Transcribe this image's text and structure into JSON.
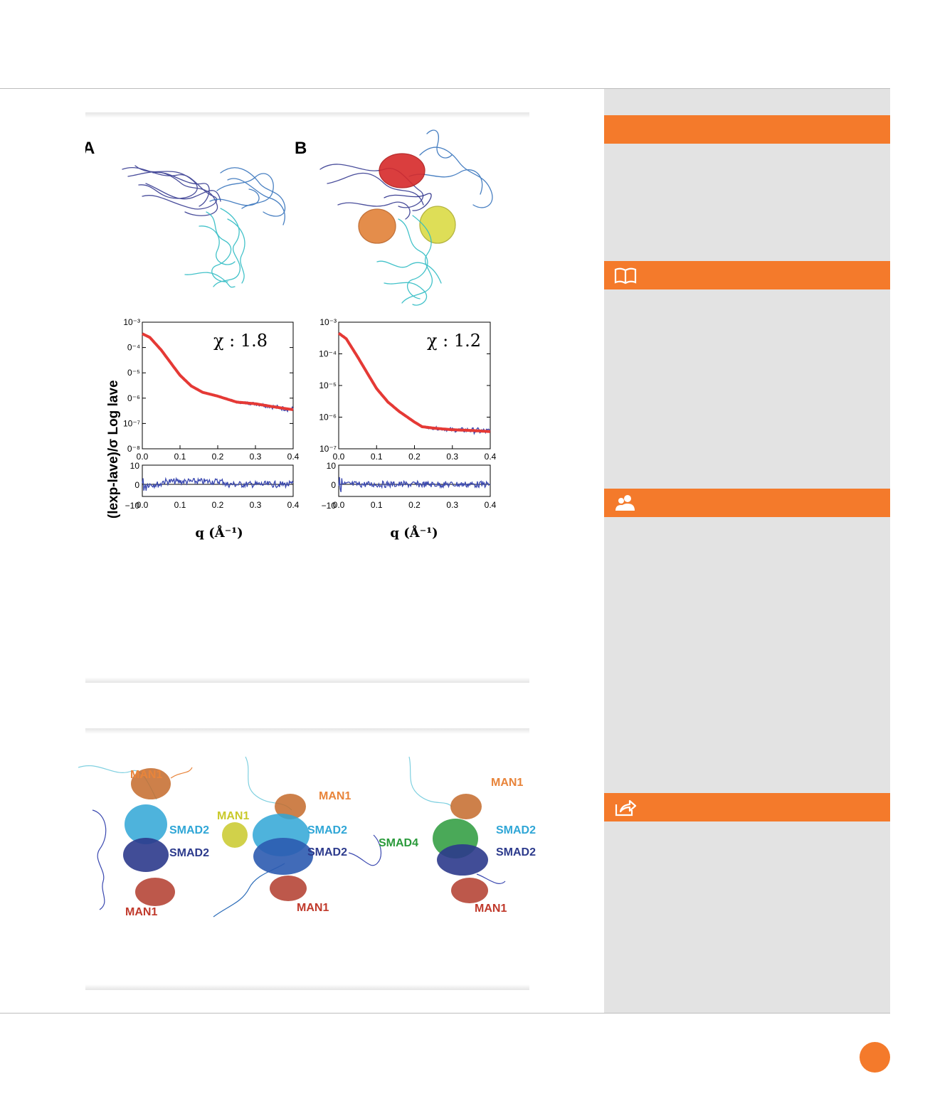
{
  "figure1": {
    "panel_a_label": "A",
    "panel_b_label": "B",
    "chi_a": "χ : 1.8",
    "chi_b": "χ : 1.2",
    "ylabel_top": "Log lave",
    "ylabel_bottom": "(lexp-lave)/σ",
    "xlabel": "q (Å⁻¹)",
    "x_ticks": [
      "0.0",
      "0.1",
      "0.2",
      "0.3",
      "0.4"
    ],
    "y_ticks_a": [
      "10⁻³",
      "0⁻⁴",
      "0⁻⁵",
      "0⁻⁶",
      "10⁻⁷",
      "0⁻⁸"
    ],
    "y_ticks_b": [
      "10⁻³",
      "10⁻⁴",
      "10⁻⁵",
      "10⁻⁶",
      "10⁻⁷"
    ],
    "res_ticks": [
      "10",
      "0",
      "−10"
    ]
  },
  "figure2": {
    "labels_left": {
      "man1_top": "MAN1",
      "smad2_a": "SMAD2",
      "smad2_b": "SMAD2",
      "man1_bottom": "MAN1"
    },
    "labels_middle": {
      "man1_left": "MAN1",
      "man1_top": "MAN1",
      "smad2_a": "SMAD2",
      "smad2_b": "SMAD2",
      "man1_bottom": "MAN1"
    },
    "labels_right": {
      "man1_top": "MAN1",
      "smad4": "SMAD4",
      "smad2_a": "SMAD2",
      "smad2_b": "SMAD2",
      "man1_bottom": "MAN1"
    },
    "colors": {
      "man1_orange": "#e8843a",
      "man1_red": "#c0392b",
      "man1_yellow": "#c9c92a",
      "smad2_cyan": "#2fa6d6",
      "smad2_navy": "#2c3a8c",
      "smad4_green": "#2a9a3b"
    }
  },
  "chart_data": [
    {
      "type": "line",
      "title": "χ : 1.8",
      "xlabel": "q (Å⁻¹)",
      "ylabel": "Log lave",
      "xlim": [
        0.0,
        0.4
      ],
      "ylim": [
        1e-08,
        0.001
      ],
      "log_y": true,
      "series": [
        {
          "x": [
            0.0,
            0.02,
            0.05,
            0.08,
            0.1,
            0.13,
            0.16,
            0.2,
            0.25,
            0.3,
            0.35,
            0.4
          ],
          "values": [
            0.00035,
            0.00025,
            8e-05,
            2e-05,
            8e-06,
            3e-06,
            1.7e-06,
            1.2e-06,
            7e-07,
            6e-07,
            4.5e-07,
            3.5e-07
          ]
        }
      ]
    },
    {
      "type": "line",
      "title": "χ : 1.2",
      "xlabel": "q (Å⁻¹)",
      "ylabel": "",
      "xlim": [
        0.0,
        0.4
      ],
      "ylim": [
        1e-07,
        0.001
      ],
      "log_y": true,
      "series": [
        {
          "x": [
            0.0,
            0.02,
            0.05,
            0.08,
            0.1,
            0.13,
            0.16,
            0.2,
            0.22,
            0.25,
            0.3,
            0.35,
            0.4
          ],
          "values": [
            0.00045,
            0.0003,
            8e-05,
            2e-05,
            8e-06,
            3e-06,
            1.5e-06,
            7e-07,
            5e-07,
            4.5e-07,
            4e-07,
            3.8e-07,
            3.5e-07
          ]
        }
      ]
    }
  ]
}
